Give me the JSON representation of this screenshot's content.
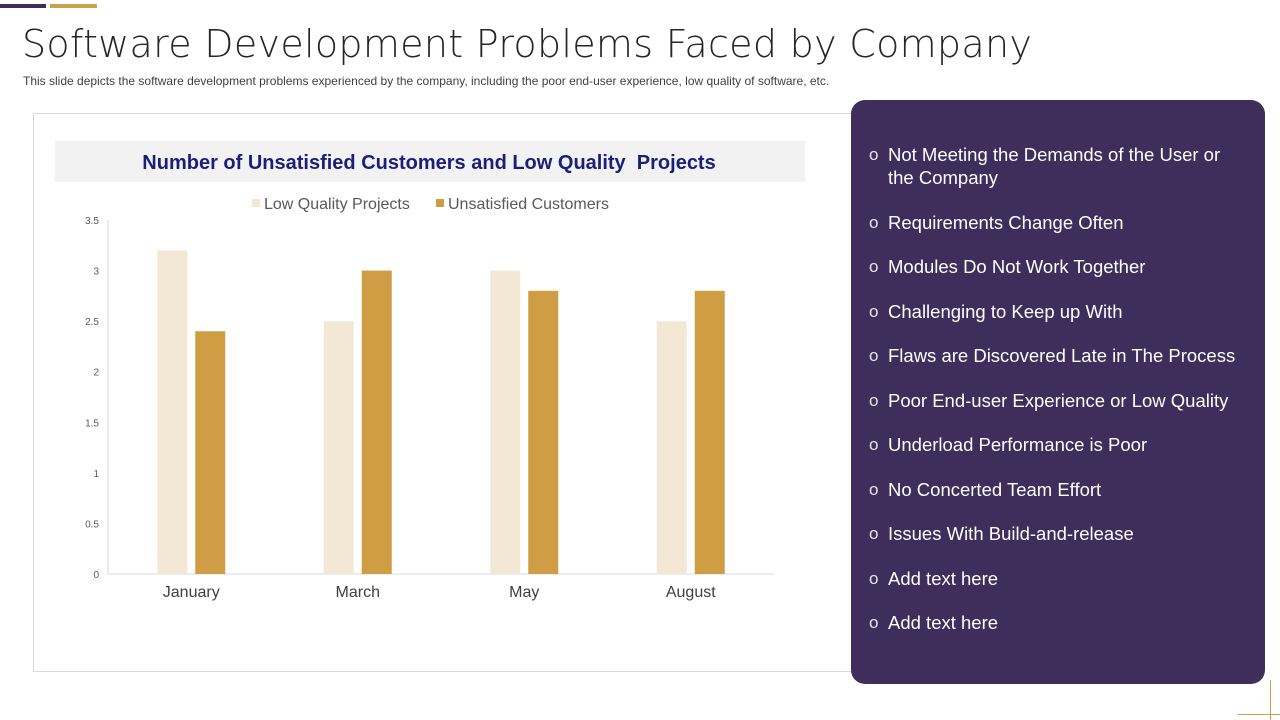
{
  "slide": {
    "title": "Software Development Problems Faced by Company",
    "subtitle": "This slide depicts the software development problems experienced by the company, including the poor end-user experience, low quality of software, etc."
  },
  "colors": {
    "panel": "#3f2d5c",
    "gold": "#c9a24a",
    "low_quality": "#f3e8d6",
    "unsatisfied": "#cf9e44",
    "chart_title": "#1a1f7a"
  },
  "chart_data": {
    "type": "bar",
    "title": "Number of Unsatisfied Customers and Low Quality  Projects",
    "categories": [
      "January",
      "March",
      "May",
      "August"
    ],
    "series": [
      {
        "name": "Low Quality Projects",
        "values": [
          3.2,
          2.5,
          3.0,
          2.5
        ]
      },
      {
        "name": "Unsatisfied Customers",
        "values": [
          2.4,
          3.0,
          2.8,
          2.8
        ]
      }
    ],
    "ylim": [
      0,
      3.5
    ],
    "yticks": [
      "0",
      "0.5",
      "1",
      "1.5",
      "2",
      "2.5",
      "3",
      "3.5"
    ],
    "ytick_values": [
      0,
      0.5,
      1,
      1.5,
      2,
      2.5,
      3,
      3.5
    ],
    "xlabel": "",
    "ylabel": "",
    "legend": "top-center",
    "grid": false
  },
  "problems": [
    "Not Meeting the Demands of the User or the Company",
    "Requirements Change Often",
    "Modules Do Not Work Together",
    "Challenging to Keep up With",
    "Flaws are Discovered Late in The Process",
    "Poor End-user Experience or Low Quality",
    "Underload Performance is Poor",
    "No Concerted Team Effort",
    "Issues With Build-and-release",
    "Add text here",
    "Add text here"
  ],
  "bullet_symbol": "o"
}
